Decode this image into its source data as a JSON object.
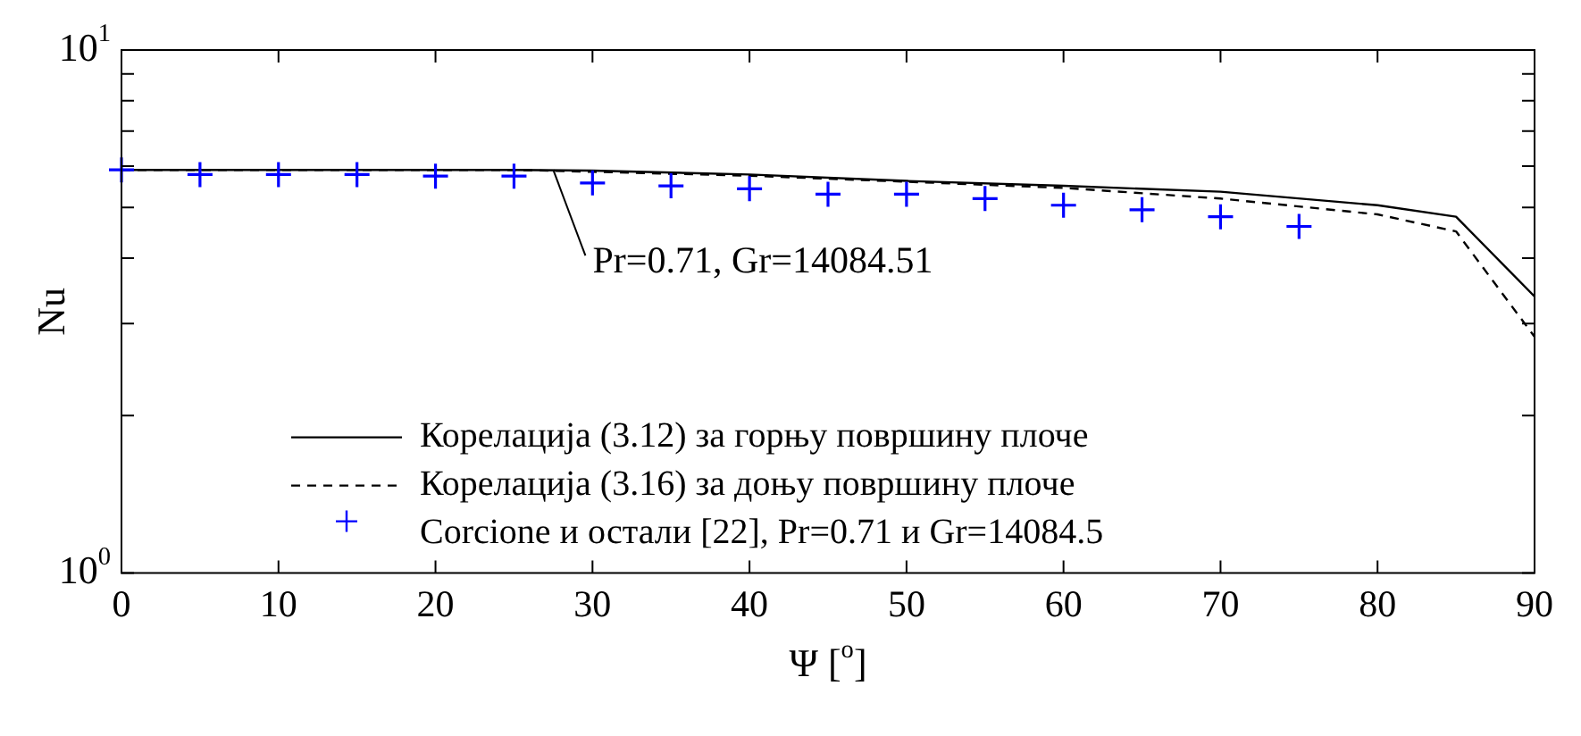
{
  "chart_data": {
    "type": "line",
    "xlabel": "Ψ [$^{o}$]",
    "ylabel": "Nu",
    "log": "y",
    "grid": false,
    "legend": "bottom left",
    "marker": "none",
    "xlim": [
      0,
      90
    ],
    "xticks": [
      0,
      10,
      20,
      30,
      40,
      50,
      60,
      70,
      80,
      90
    ],
    "ylim": [
      1,
      10
    ],
    "yticks": [
      {
        "value": 1,
        "label": "10$^{0}$"
      },
      {
        "value": 2,
        "label": null
      },
      {
        "value": 3,
        "label": null
      },
      {
        "value": 4,
        "label": null
      },
      {
        "value": 5,
        "label": null
      },
      {
        "value": 6,
        "label": null
      },
      {
        "value": 7,
        "label": null
      },
      {
        "value": 8,
        "label": null
      },
      {
        "value": 9,
        "label": null
      },
      {
        "value": 10,
        "label": "10$^{1}$"
      }
    ],
    "annotations": [
      {
        "text": "Pr=0.71, Gr=14084.51",
        "x": 27.5,
        "y": 5.9
      }
    ],
    "series": [
      {
        "name": "Корелација (3.12) за горњу површину плоче",
        "color": "#000000",
        "line_style": "solid",
        "x": [
          0,
          25,
          30,
          40,
          50,
          60,
          70,
          80,
          85,
          90
        ],
        "values": [
          5.9,
          5.9,
          5.88,
          5.78,
          5.62,
          5.5,
          5.36,
          5.05,
          4.8,
          3.38
        ]
      },
      {
        "name": "Корелација (3.16) за доњу површину плоче",
        "color": "#000000",
        "line_style": "dashed",
        "x": [
          0,
          25,
          30,
          40,
          50,
          60,
          70,
          80,
          85,
          90
        ],
        "values": [
          5.9,
          5.9,
          5.85,
          5.75,
          5.6,
          5.45,
          5.2,
          4.85,
          4.5,
          2.83
        ]
      },
      {
        "name": "Corcione и остали [22], Pr=0.71 и Gr=14084.5",
        "type": "scatter",
        "marker": "cross",
        "color": "#0000ff",
        "x": [
          0,
          5,
          10,
          15,
          20,
          25,
          30,
          35,
          40,
          45,
          50,
          55,
          60,
          65,
          70,
          75
        ],
        "values": [
          5.9,
          5.78,
          5.78,
          5.78,
          5.74,
          5.74,
          5.57,
          5.5,
          5.43,
          5.3,
          5.3,
          5.2,
          5.05,
          4.95,
          4.8,
          4.6
        ]
      }
    ]
  }
}
